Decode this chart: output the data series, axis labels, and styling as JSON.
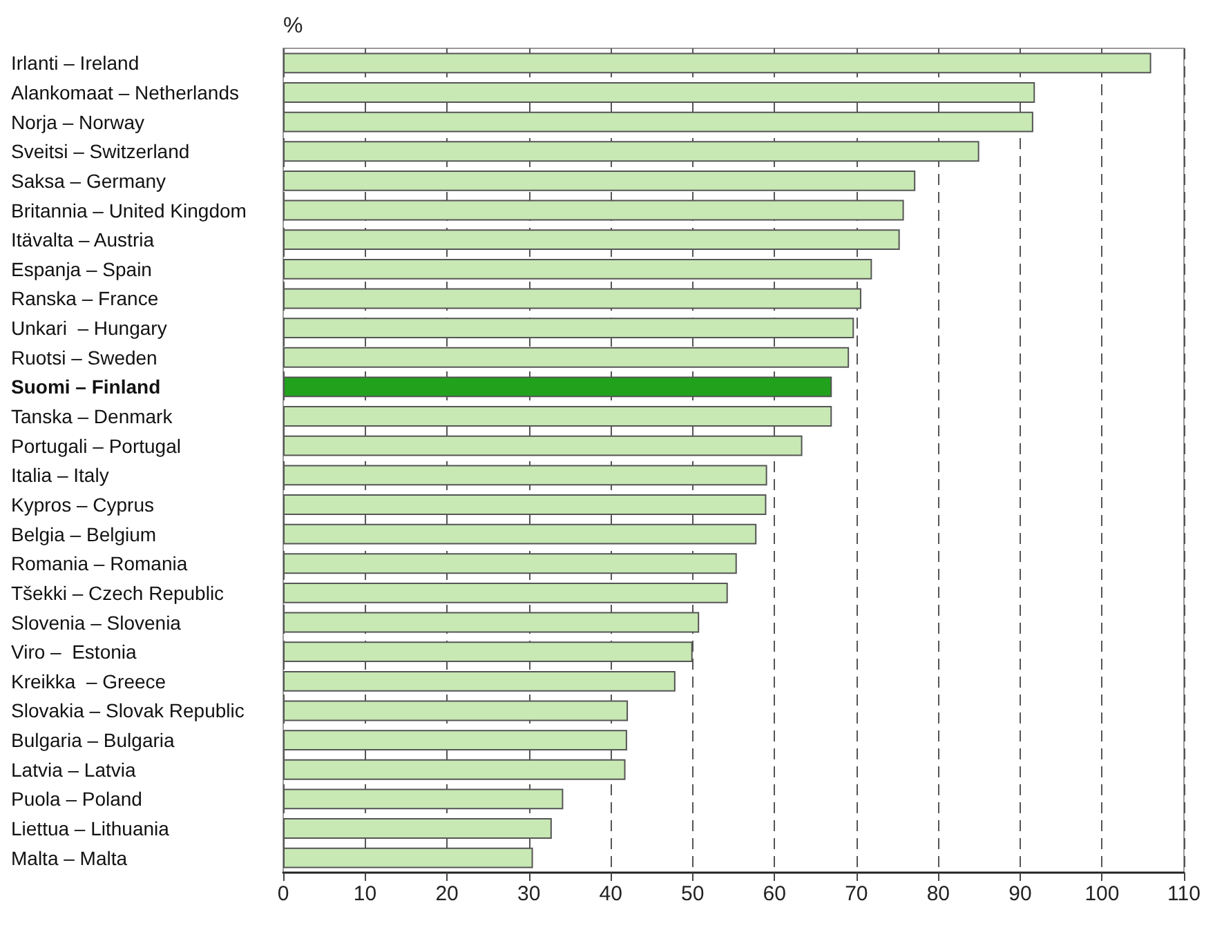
{
  "chart_data": {
    "type": "bar",
    "orientation": "horizontal",
    "xlabel": "%",
    "categories": [
      "Irlanti – Ireland",
      "Alankomaat – Netherlands",
      "Norja – Norway",
      "Sveitsi – Switzerland",
      "Saksa – Germany",
      "Britannia – United Kingdom",
      "Itävalta – Austria",
      "Espanja – Spain",
      "Ranska – France",
      "Unkari  – Hungary",
      "Ruotsi – Sweden",
      "Suomi – Finland",
      "Tanska – Denmark",
      "Portugali – Portugal",
      "Italia – Italy",
      "Kypros – Cyprus",
      "Belgia – Belgium",
      "Romania – Romania",
      "Tšekki – Czech Republic",
      "Slovenia – Slovenia",
      "Viro –  Estonia",
      "Kreikka  – Greece",
      "Slovakia – Slovak Republic",
      "Bulgaria – Bulgaria",
      "Latvia – Latvia",
      "Puola – Poland",
      "Liettua – Lithuania",
      "Malta – Malta"
    ],
    "values": [
      106,
      91.8,
      91.6,
      85,
      77.2,
      75.8,
      75.3,
      71.9,
      70.6,
      69.7,
      69.1,
      67,
      67,
      63.4,
      59.1,
      59,
      57.8,
      55.4,
      54.3,
      50.8,
      50,
      47.9,
      42.1,
      42,
      41.8,
      34.2,
      32.8,
      30.5
    ],
    "colors": [
      "#c8e8b4",
      "#c8e8b4",
      "#c8e8b4",
      "#c8e8b4",
      "#c8e8b4",
      "#c8e8b4",
      "#c8e8b4",
      "#c8e8b4",
      "#c8e8b4",
      "#c8e8b4",
      "#c8e8b4",
      "#22a11c",
      "#c8e8b4",
      "#c8e8b4",
      "#c8e8b4",
      "#c8e8b4",
      "#c8e8b4",
      "#c8e8b4",
      "#c8e8b4",
      "#c8e8b4",
      "#c8e8b4",
      "#c8e8b4",
      "#c8e8b4",
      "#c8e8b4",
      "#c8e8b4",
      "#c8e8b4",
      "#c8e8b4",
      "#c8e8b4"
    ],
    "xlim": [
      0,
      110
    ],
    "xticks": [
      0,
      10,
      20,
      30,
      40,
      50,
      60,
      70,
      80,
      90,
      100,
      110
    ],
    "grid": "x"
  }
}
